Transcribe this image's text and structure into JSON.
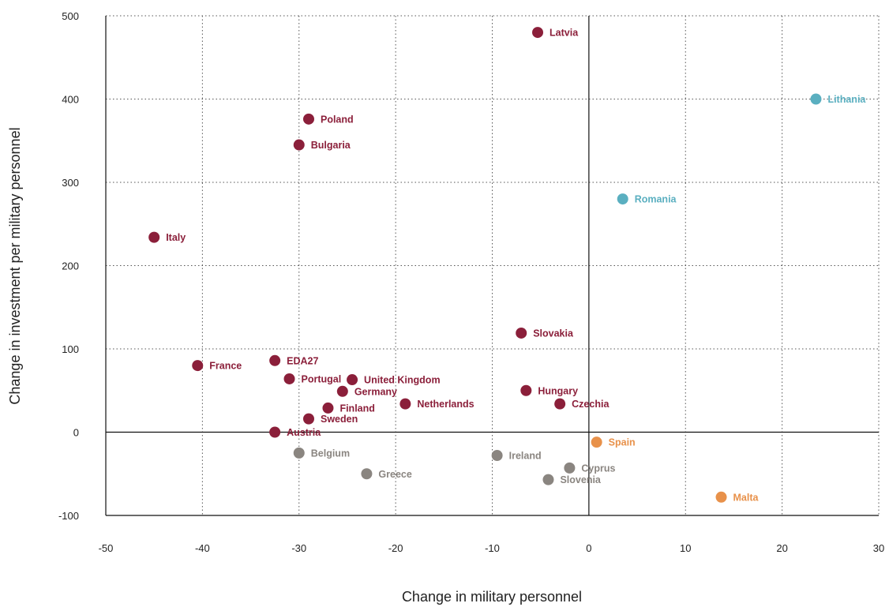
{
  "chart_data": {
    "type": "scatter",
    "xlabel": "Change in military personnel",
    "ylabel": "Change in investment per military personnel",
    "xlim": [
      -50,
      30
    ],
    "ylim": [
      -100,
      500
    ],
    "x_ticks": [
      -50,
      -40,
      -30,
      -20,
      -10,
      0,
      10,
      20,
      30
    ],
    "y_ticks": [
      -100,
      0,
      100,
      200,
      300,
      400,
      500
    ],
    "grid": true,
    "colors": {
      "red": "#8b1f3a",
      "teal": "#5aafc0",
      "grey": "#8a8580",
      "orange": "#e8914a"
    },
    "points": [
      {
        "label": "Latvia",
        "x": -5.3,
        "y": 480,
        "color": "red"
      },
      {
        "label": "Lithania",
        "x": 23.5,
        "y": 400,
        "color": "teal"
      },
      {
        "label": "Poland",
        "x": -29,
        "y": 376,
        "color": "red"
      },
      {
        "label": "Bulgaria",
        "x": -30,
        "y": 345,
        "color": "red"
      },
      {
        "label": "Romania",
        "x": 3.5,
        "y": 280,
        "color": "teal"
      },
      {
        "label": "Italy",
        "x": -45,
        "y": 234,
        "color": "red"
      },
      {
        "label": "Slovakia",
        "x": -7,
        "y": 119,
        "color": "red"
      },
      {
        "label": "EDA27",
        "x": -32.5,
        "y": 86,
        "color": "red"
      },
      {
        "label": "France",
        "x": -40.5,
        "y": 80,
        "color": "red"
      },
      {
        "label": "Portugal",
        "x": -31,
        "y": 64,
        "color": "red"
      },
      {
        "label": "United Kingdom",
        "x": -24.5,
        "y": 63,
        "color": "red"
      },
      {
        "label": "Germany",
        "x": -25.5,
        "y": 49,
        "color": "red"
      },
      {
        "label": "Hungary",
        "x": -6.5,
        "y": 50,
        "color": "red"
      },
      {
        "label": "Netherlands",
        "x": -19,
        "y": 34,
        "color": "red"
      },
      {
        "label": "Czechia",
        "x": -3,
        "y": 34,
        "color": "red"
      },
      {
        "label": "Finland",
        "x": -27,
        "y": 29,
        "color": "red"
      },
      {
        "label": "Sweden",
        "x": -29,
        "y": 16,
        "color": "red"
      },
      {
        "label": "Austria",
        "x": -32.5,
        "y": 0,
        "color": "red"
      },
      {
        "label": "Spain",
        "x": 0.8,
        "y": -12,
        "color": "orange"
      },
      {
        "label": "Belgium",
        "x": -30,
        "y": -25,
        "color": "grey"
      },
      {
        "label": "Ireland",
        "x": -9.5,
        "y": -28,
        "color": "grey"
      },
      {
        "label": "Cyprus",
        "x": -2,
        "y": -43,
        "color": "grey"
      },
      {
        "label": "Greece",
        "x": -23,
        "y": -50,
        "color": "grey"
      },
      {
        "label": "Slovenia",
        "x": -4.2,
        "y": -57,
        "color": "grey"
      },
      {
        "label": "Malta",
        "x": 13.7,
        "y": -78,
        "color": "orange"
      }
    ]
  }
}
